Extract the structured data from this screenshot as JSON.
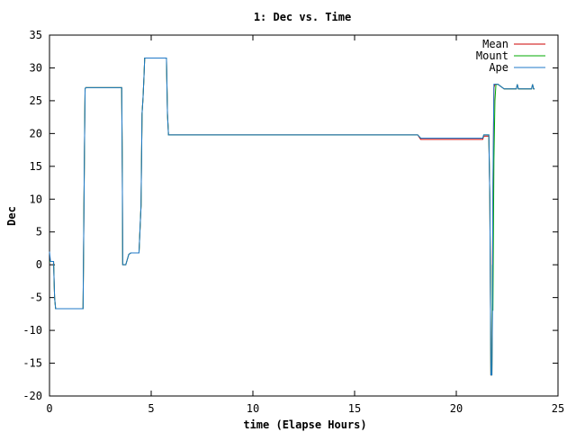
{
  "chart_data": {
    "type": "line",
    "title": "1: Dec vs. Time",
    "xlabel": "time (Elapse Hours)",
    "ylabel": "Dec",
    "xlim": [
      0,
      25
    ],
    "ylim": [
      -20,
      35
    ],
    "xticks": [
      0,
      5,
      10,
      15,
      20,
      25
    ],
    "yticks": [
      -20,
      -15,
      -10,
      -5,
      0,
      5,
      10,
      15,
      20,
      25,
      30,
      35
    ],
    "grid": false,
    "legend_position": "top-right",
    "series": [
      {
        "name": "Mean",
        "color": "#cc0000",
        "x": [
          0,
          0.05,
          0.1,
          0.2,
          0.25,
          0.3,
          0.4,
          1.65,
          1.72,
          1.75,
          1.78,
          2.8,
          3.55,
          3.58,
          3.6,
          3.75,
          3.9,
          4.0,
          4.4,
          4.5,
          4.55,
          4.6,
          4.65,
          4.68,
          5.75,
          5.8,
          5.85,
          5.9,
          18.1,
          18.25,
          21.3,
          21.35,
          21.6,
          21.65,
          21.7,
          21.75,
          21.78,
          21.8,
          21.85,
          21.9,
          21.95,
          22.0,
          22.05,
          22.35,
          22.45,
          22.95,
          23.0,
          23.05,
          23.1,
          23.7,
          23.75,
          23.8,
          23.85
        ],
        "y": [
          0.5,
          0.5,
          0.5,
          0.5,
          -5.0,
          -6.7,
          -6.7,
          -6.7,
          18.0,
          26.8,
          27.0,
          27.0,
          27.0,
          14.0,
          0.0,
          0.0,
          1.6,
          1.8,
          1.8,
          9.0,
          23.0,
          25.5,
          29.0,
          31.5,
          31.5,
          23.0,
          19.8,
          19.8,
          19.8,
          19.1,
          19.1,
          19.6,
          19.6,
          10.0,
          -16.8,
          -16.8,
          0.0,
          10.0,
          27.0,
          27.5,
          27.5,
          27.5,
          27.5,
          26.8,
          26.8,
          26.8,
          27.5,
          26.8,
          26.8,
          26.8,
          27.5,
          26.8,
          26.8
        ]
      },
      {
        "name": "Mount",
        "color": "#00aa00",
        "x": [
          0,
          0.05,
          0.1,
          0.2,
          0.25,
          0.3,
          0.4,
          1.65,
          1.72,
          1.75,
          1.78,
          2.8,
          3.55,
          3.58,
          3.6,
          3.75,
          3.9,
          4.0,
          4.4,
          4.5,
          4.55,
          4.6,
          4.65,
          4.68,
          5.75,
          5.8,
          5.85,
          5.9,
          18.1,
          18.25,
          21.3,
          21.35,
          21.6,
          21.65,
          21.7,
          21.75,
          21.78,
          21.8,
          21.85,
          21.9,
          21.95,
          22.0,
          22.05,
          22.35,
          22.45,
          22.95,
          23.0,
          23.05,
          23.1,
          23.7,
          23.75,
          23.8,
          23.85
        ],
        "y": [
          0.5,
          0.5,
          0.5,
          0.5,
          -5.0,
          -6.7,
          -6.7,
          -6.7,
          18.0,
          26.8,
          27.0,
          27.0,
          27.0,
          14.0,
          0.0,
          0.0,
          1.6,
          1.8,
          1.8,
          9.0,
          23.0,
          25.5,
          29.0,
          31.5,
          31.5,
          23.0,
          19.8,
          19.8,
          19.8,
          19.3,
          19.3,
          19.8,
          19.8,
          10.0,
          -16.8,
          -16.8,
          0.0,
          -7.0,
          16.0,
          25.0,
          27.5,
          27.5,
          27.5,
          26.8,
          26.8,
          26.8,
          27.5,
          26.8,
          26.8,
          26.8,
          27.5,
          26.8,
          26.8
        ]
      },
      {
        "name": "Ape",
        "color": "#1f78c8",
        "x": [
          0,
          0.05,
          0.1,
          0.2,
          0.25,
          0.3,
          0.4,
          1.65,
          1.72,
          1.75,
          1.78,
          2.8,
          3.55,
          3.58,
          3.6,
          3.75,
          3.9,
          4.0,
          4.4,
          4.5,
          4.55,
          4.6,
          4.65,
          4.68,
          5.75,
          5.8,
          5.85,
          5.9,
          18.1,
          18.25,
          21.3,
          21.35,
          21.6,
          21.65,
          21.7,
          21.75,
          21.78,
          21.8,
          21.85,
          21.9,
          21.95,
          22.0,
          22.05,
          22.35,
          22.45,
          22.95,
          23.0,
          23.05,
          23.1,
          23.7,
          23.75,
          23.8,
          23.85
        ],
        "y": [
          2.0,
          0.5,
          0.5,
          0.5,
          -5.0,
          -6.7,
          -6.7,
          -6.7,
          18.0,
          26.8,
          27.0,
          27.0,
          27.0,
          14.0,
          0.0,
          0.0,
          1.6,
          1.8,
          1.8,
          9.0,
          23.0,
          25.5,
          29.0,
          31.5,
          31.5,
          23.0,
          19.8,
          19.8,
          19.8,
          19.3,
          19.3,
          19.8,
          19.8,
          10.0,
          -16.8,
          -16.8,
          -7.5,
          12.0,
          27.5,
          27.5,
          27.5,
          27.5,
          27.5,
          26.8,
          26.8,
          26.8,
          27.5,
          26.8,
          26.8,
          26.8,
          27.5,
          26.8,
          26.8
        ]
      }
    ]
  }
}
